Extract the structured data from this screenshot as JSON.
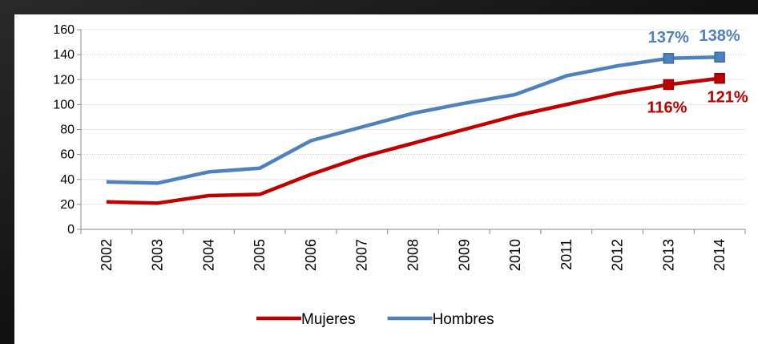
{
  "chart_data": {
    "type": "line",
    "categories": [
      "2002",
      "2003",
      "2004",
      "2005",
      "2006",
      "2007",
      "2008",
      "2009",
      "2010",
      "2011",
      "2012",
      "2013",
      "2014"
    ],
    "series": [
      {
        "name": "Mujeres",
        "color": "#c00000",
        "values": [
          22,
          21,
          27,
          28,
          44,
          58,
          69,
          80,
          91,
          100,
          109,
          116,
          121
        ],
        "value_labels": [
          null,
          null,
          null,
          null,
          null,
          null,
          null,
          null,
          null,
          null,
          null,
          "116%",
          "121%"
        ]
      },
      {
        "name": "Hombres",
        "color": "#4f81bd",
        "values": [
          38,
          37,
          46,
          49,
          71,
          82,
          93,
          101,
          108,
          123,
          131,
          137,
          138
        ],
        "value_labels": [
          null,
          null,
          null,
          null,
          null,
          null,
          null,
          null,
          null,
          null,
          null,
          "137%",
          "138%"
        ]
      }
    ],
    "ylim": [
      0,
      160
    ],
    "yticks": [
      0,
      20,
      40,
      60,
      80,
      100,
      120,
      140,
      160
    ],
    "grid": true,
    "legend": "bottom"
  }
}
